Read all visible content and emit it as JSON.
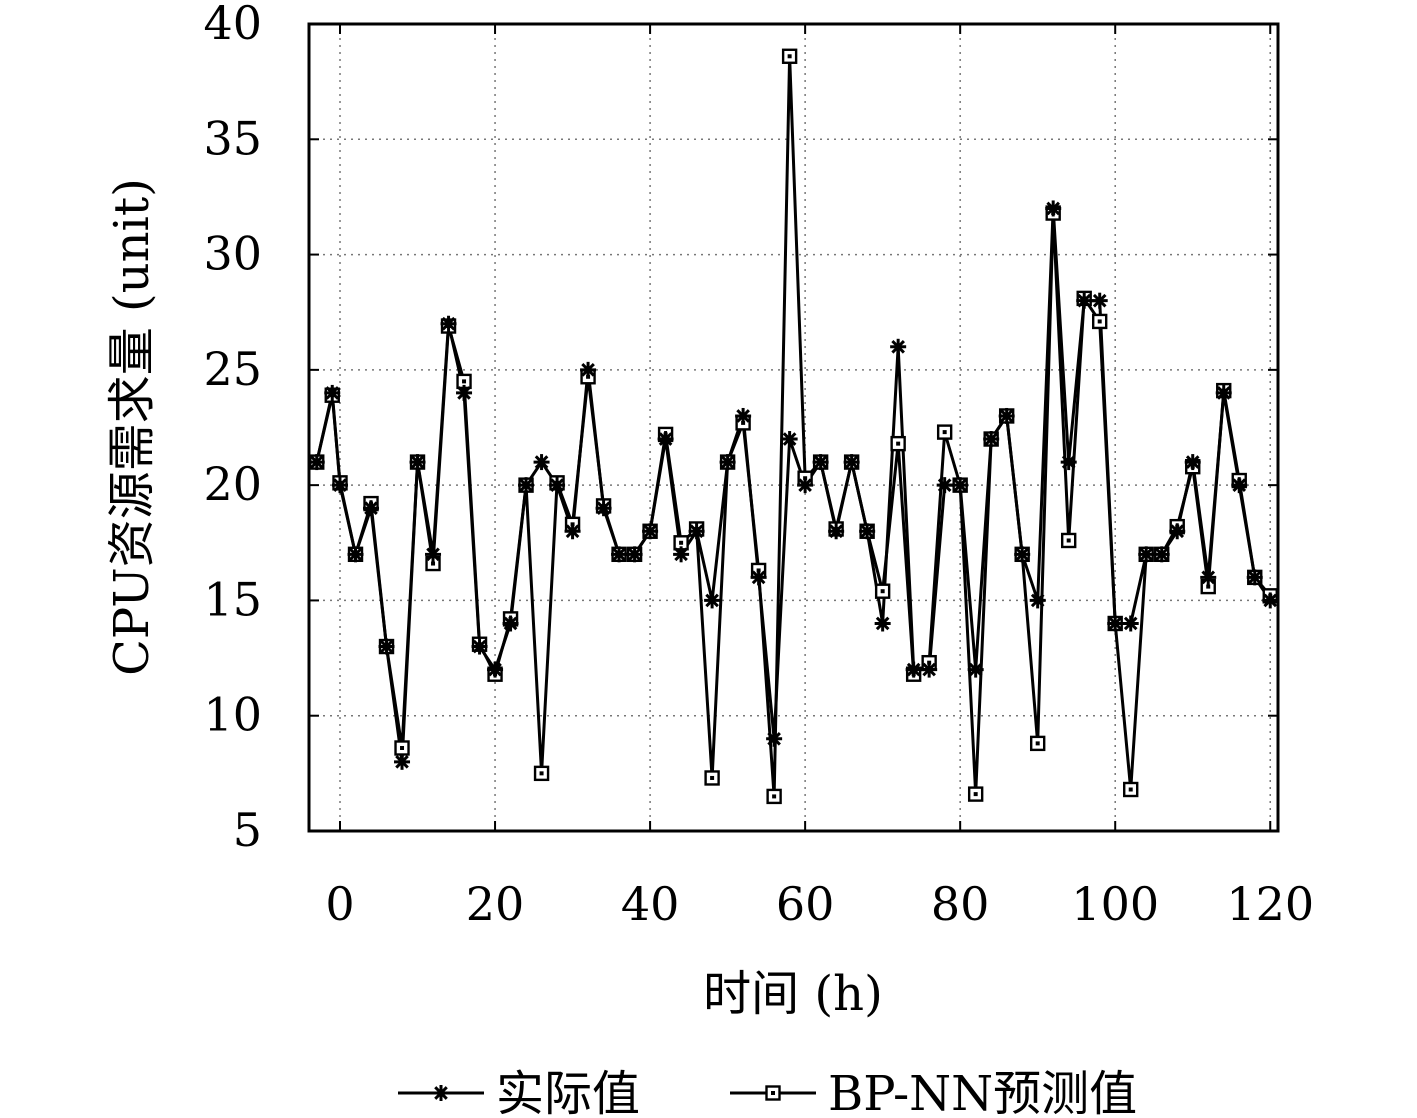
{
  "chart_data": {
    "type": "line",
    "title": "",
    "xlabel": "时间 (h)",
    "ylabel": "CPU资源需求量 (unit)",
    "xlim": [
      -4,
      121
    ],
    "ylim": [
      5,
      40
    ],
    "xticks": [
      0,
      20,
      40,
      60,
      80,
      100,
      120
    ],
    "yticks": [
      5,
      10,
      15,
      20,
      25,
      30,
      35,
      40
    ],
    "grid": true,
    "legend_position": "bottom",
    "x": [
      -3,
      -1,
      0,
      2,
      4,
      6,
      8,
      10,
      12,
      14,
      16,
      18,
      20,
      22,
      24,
      26,
      28,
      30,
      32,
      34,
      36,
      38,
      40,
      42,
      44,
      46,
      48,
      50,
      52,
      54,
      56,
      58,
      60,
      62,
      64,
      66,
      68,
      70,
      72,
      74,
      76,
      78,
      80,
      82,
      84,
      86,
      88,
      90,
      92,
      94,
      96,
      98,
      100,
      102,
      104,
      106,
      108,
      110,
      112,
      114,
      116,
      118,
      120
    ],
    "series": [
      {
        "name": "实际值",
        "marker": "star",
        "values": [
          21,
          24,
          20,
          17,
          19,
          13,
          8,
          21,
          17,
          27,
          24,
          13,
          12,
          14,
          20,
          21,
          20,
          18,
          25,
          19,
          17,
          17,
          18,
          22,
          17,
          18,
          15,
          21,
          23,
          16,
          9,
          22,
          20,
          21,
          18,
          21,
          18,
          14,
          26,
          12,
          12,
          20,
          20,
          12,
          22,
          23,
          17,
          15,
          32,
          21,
          28,
          28,
          14,
          14,
          17,
          17,
          18,
          21,
          16,
          24,
          20,
          16,
          15
        ]
      },
      {
        "name": "BP-NN预测值",
        "marker": "square",
        "values": [
          21,
          23.9,
          20.1,
          17,
          19.2,
          13,
          8.6,
          21,
          16.6,
          26.9,
          24.5,
          13.1,
          11.8,
          14.2,
          20,
          7.5,
          20.1,
          18.3,
          24.7,
          19.1,
          17,
          17,
          18,
          22.2,
          17.5,
          18.1,
          7.3,
          21,
          22.7,
          16.3,
          6.5,
          38.6,
          20.3,
          21,
          18.1,
          21,
          18,
          15.4,
          21.8,
          11.8,
          12.3,
          22.3,
          20,
          6.6,
          22,
          23,
          17,
          8.8,
          31.8,
          17.6,
          28.1,
          27.1,
          14,
          6.8,
          17,
          17,
          18.2,
          20.8,
          15.6,
          24.1,
          20.2,
          16,
          15.2
        ]
      }
    ]
  }
}
